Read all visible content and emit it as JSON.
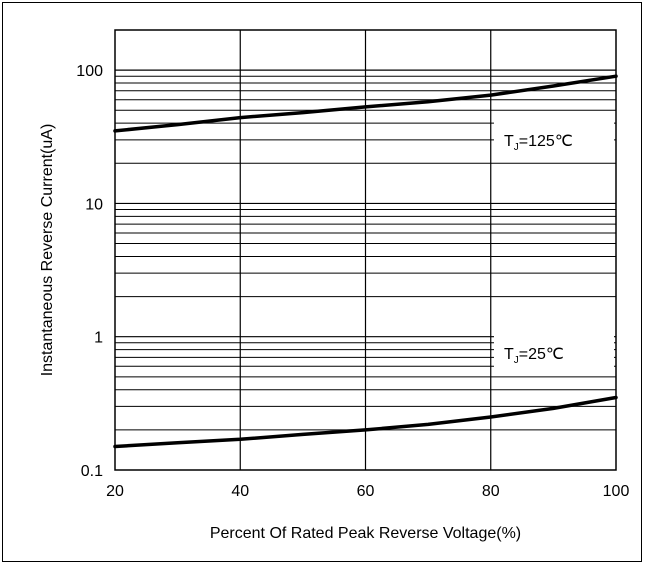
{
  "chart_data": {
    "type": "line",
    "title": "",
    "xlabel": "Percent Of Rated Peak Reverse Voltage(%)",
    "ylabel": "Instantaneous Reverse Current(uA)",
    "xlim": [
      20,
      100
    ],
    "ylim": [
      0.1,
      200
    ],
    "yscale": "log",
    "grid": true,
    "x_ticks": [
      "20",
      "40",
      "60",
      "80",
      "100"
    ],
    "y_ticks": [
      "0.1",
      "1",
      "10",
      "100"
    ],
    "series": [
      {
        "label_main": "T",
        "label_sub": "J",
        "label_rest": "=125℃",
        "points": [
          [
            20,
            35
          ],
          [
            30,
            39
          ],
          [
            40,
            44
          ],
          [
            50,
            48
          ],
          [
            60,
            53
          ],
          [
            70,
            58
          ],
          [
            80,
            65
          ],
          [
            90,
            76
          ],
          [
            100,
            90
          ]
        ]
      },
      {
        "label_main": "T",
        "label_sub": "J",
        "label_rest": "=25℃",
        "points": [
          [
            20,
            0.15
          ],
          [
            30,
            0.16
          ],
          [
            40,
            0.17
          ],
          [
            50,
            0.185
          ],
          [
            60,
            0.2
          ],
          [
            70,
            0.22
          ],
          [
            80,
            0.25
          ],
          [
            90,
            0.29
          ],
          [
            100,
            0.35
          ]
        ]
      }
    ],
    "colors": {
      "line": "#000000",
      "grid": "#000000"
    }
  }
}
